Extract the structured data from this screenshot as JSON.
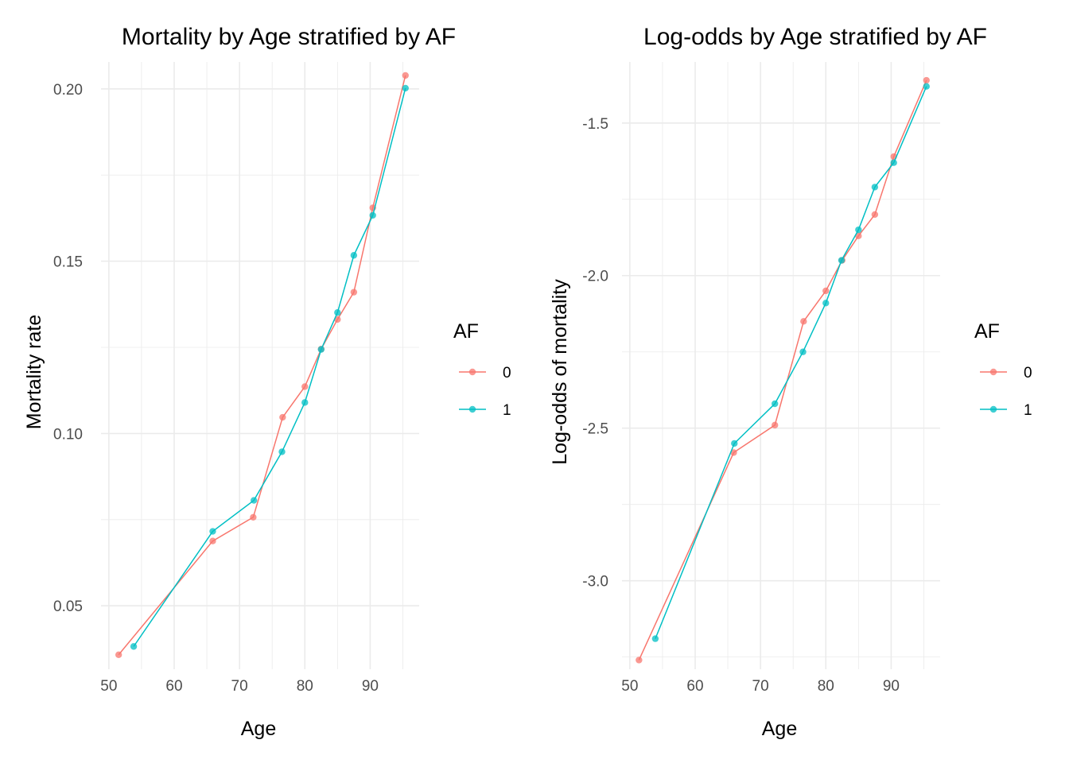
{
  "chart_data": [
    {
      "type": "line",
      "title": "Mortality by Age stratified by AF",
      "xlabel": "Age",
      "ylabel": "Mortality rate",
      "xlim": [
        48.8,
        97.5
      ],
      "ylim": [
        0.0316,
        0.2078
      ],
      "x_ticks": [
        50,
        60,
        70,
        80,
        90
      ],
      "x_tick_labels": [
        "50",
        "60",
        "70",
        "80",
        "90"
      ],
      "y_ticks": [
        0.05,
        0.1,
        0.15,
        0.2
      ],
      "y_tick_labels": [
        "0.05",
        "0.10",
        "0.15",
        "0.20"
      ],
      "grid": true,
      "legend": {
        "title": "AF",
        "position": "right"
      },
      "series": [
        {
          "name": "0",
          "color": "#F8766D",
          "x": [
            51.5,
            65.9,
            72.1,
            76.6,
            80.0,
            82.5,
            85.0,
            87.5,
            90.4,
            95.4
          ],
          "y": [
            0.0358,
            0.0688,
            0.0757,
            0.1047,
            0.1136,
            0.1245,
            0.1331,
            0.141,
            0.1655,
            0.2039
          ]
        },
        {
          "name": "1",
          "color": "#00BFC4",
          "x": [
            53.8,
            65.9,
            72.2,
            76.5,
            80.0,
            82.5,
            85.0,
            87.5,
            90.4,
            95.4
          ],
          "y": [
            0.0382,
            0.0716,
            0.0806,
            0.0947,
            0.109,
            0.1244,
            0.1351,
            0.1517,
            0.1633,
            0.2002
          ]
        }
      ]
    },
    {
      "type": "line",
      "title": "Log-odds by Age stratified by AF",
      "xlabel": "Age",
      "ylabel": "Log-odds of mortality",
      "xlim": [
        48.8,
        97.5
      ],
      "ylim": [
        -3.29,
        -1.3
      ],
      "x_ticks": [
        50,
        60,
        70,
        80,
        90
      ],
      "x_tick_labels": [
        "50",
        "60",
        "70",
        "80",
        "90"
      ],
      "y_ticks": [
        -3.0,
        -2.5,
        -2.0,
        -1.5
      ],
      "y_tick_labels": [
        "-3.0",
        "-2.5",
        "-2.0",
        "-1.5"
      ],
      "grid": true,
      "legend": {
        "title": "AF",
        "position": "right"
      },
      "series": [
        {
          "name": "0",
          "color": "#F8766D",
          "x": [
            51.4,
            65.9,
            72.2,
            76.6,
            80.0,
            82.5,
            85.0,
            87.5,
            90.4,
            95.4
          ],
          "y": [
            -3.26,
            -2.58,
            -2.49,
            -2.15,
            -2.05,
            -1.95,
            -1.87,
            -1.8,
            -1.61,
            -1.36
          ]
        },
        {
          "name": "1",
          "color": "#00BFC4",
          "x": [
            53.9,
            66.0,
            72.2,
            76.5,
            80.0,
            82.4,
            85.0,
            87.5,
            90.4,
            95.4
          ],
          "y": [
            -3.19,
            -2.55,
            -2.42,
            -2.25,
            -2.09,
            -1.95,
            -1.85,
            -1.71,
            -1.63,
            -1.38
          ]
        }
      ]
    }
  ]
}
